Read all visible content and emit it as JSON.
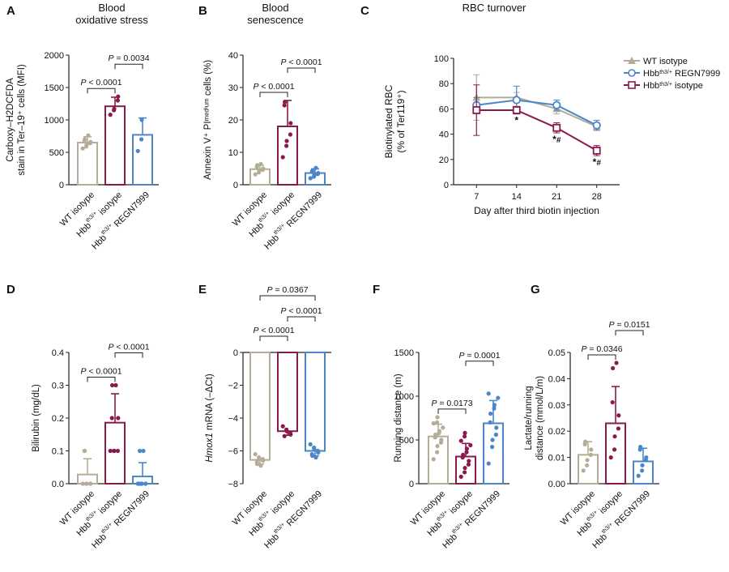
{
  "colors": {
    "wt": "#b5ad98",
    "th3": "#8a1a4e",
    "regn": "#4a86c8",
    "axis": "#222222"
  },
  "groups": [
    "WT isotype",
    "Hbb<sup>th3/+</sup> isotype",
    "Hbb<sup>th3/+</sup> REGN7999"
  ],
  "chart_data": [
    {
      "panel": "A",
      "type": "bar",
      "title": "Blood\noxidative stress",
      "ylabel": "Carboxy–H2DCFDA\nstain in Ter–19⁺ cells (MFI)",
      "ylim": [
        0,
        2000
      ],
      "yticks": [
        "0",
        "500",
        "1000",
        "1500",
        "2000"
      ],
      "categories": [
        "WT isotype",
        "Hbb<sup>th3/+</sup> isotype",
        "Hbb<sup>th3/+</sup> REGN7999"
      ],
      "values": [
        650,
        1210,
        770
      ],
      "sd": [
        90,
        140,
        260
      ],
      "points": [
        [
          560,
          590,
          620,
          640,
          660,
          680,
          700,
          760
        ],
        [
          1080,
          1150,
          1170,
          1300,
          1360
        ],
        [
          520,
          700,
          1000
        ]
      ],
      "comparisons": [
        {
          "a": 0,
          "b": 1,
          "label": "P < 0.0001"
        },
        {
          "a": 1,
          "b": 2,
          "label": "P = 0.0034"
        }
      ]
    },
    {
      "panel": "B",
      "type": "bar",
      "title": "Blood\nsenescence",
      "ylabel": "Annexin V⁺ PIᵐᵉᵈⁱᵘᵐ cells (%)",
      "ylim": [
        0,
        40
      ],
      "yticks": [
        "0",
        "10",
        "20",
        "30",
        "40"
      ],
      "categories": [
        "WT isotype",
        "Hbb<sup>th3/+</sup> isotype",
        "Hbb<sup>th3/+</sup> REGN7999"
      ],
      "values": [
        4.8,
        18.0,
        3.6
      ],
      "sd": [
        1.2,
        8.0,
        1.3
      ],
      "points": [
        [
          3.2,
          3.8,
          4.3,
          4.6,
          5.0,
          5.5,
          6.0,
          6.4
        ],
        [
          8.5,
          12,
          13.5,
          15.5,
          19,
          24.5,
          25.5
        ],
        [
          2.0,
          2.5,
          3.0,
          3.3,
          3.6,
          4.0,
          4.3,
          5.2
        ]
      ],
      "comparisons": [
        {
          "a": 0,
          "b": 1,
          "label": "P < 0.0001"
        },
        {
          "a": 1,
          "b": 2,
          "label": "P < 0.0001"
        }
      ]
    },
    {
      "panel": "C",
      "type": "line",
      "title": "RBC turnover",
      "ylabel": "Biotinylated RBC\n(% of Ter119⁺)",
      "xlabel": "Day after third biotin injection",
      "x": [
        7,
        14,
        21,
        28
      ],
      "ylim": [
        0,
        100
      ],
      "yticks": [
        "0",
        "20",
        "40",
        "60",
        "80",
        "100"
      ],
      "series": [
        {
          "name": "WT isotype",
          "values": [
            69,
            69,
            60,
            46
          ],
          "sd": [
            18,
            4,
            4,
            3
          ],
          "marker": "triangle"
        },
        {
          "name": "Hbb<sup>th3/+</sup> REGN7999",
          "values": [
            63,
            67,
            63,
            47
          ],
          "sd": [
            6,
            11,
            4,
            4
          ],
          "marker": "circle"
        },
        {
          "name": "Hbb<sup>th3/+</sup> isotype",
          "values": [
            59,
            59,
            45,
            27
          ],
          "sd": [
            20,
            3,
            4,
            4
          ],
          "marker": "square"
        }
      ],
      "annotations": [
        {
          "x": 14,
          "label": "*"
        },
        {
          "x": 21,
          "label": "*#"
        },
        {
          "x": 28,
          "label": "*#"
        }
      ],
      "legend": "top-right"
    },
    {
      "panel": "D",
      "type": "bar",
      "ylabel": "Bilirubin (mg/dL)",
      "ylim": [
        0,
        0.4
      ],
      "yticks": [
        "0.0",
        "0.1",
        "0.2",
        "0.3",
        "0.4"
      ],
      "categories": [
        "WT isotype",
        "Hbb<sup>th3/+</sup> isotype",
        "Hbb<sup>th3/+</sup> REGN7999"
      ],
      "values": [
        0.028,
        0.186,
        0.022
      ],
      "sd": [
        0.048,
        0.088,
        0.042
      ],
      "points": [
        [
          0,
          0,
          0,
          0,
          0,
          0.1,
          0.1
        ],
        [
          0.1,
          0.1,
          0.1,
          0.1,
          0.2,
          0.2,
          0.3,
          0.3
        ],
        [
          0,
          0,
          0,
          0,
          0,
          0,
          0.1,
          0.1
        ]
      ],
      "comparisons": [
        {
          "a": 0,
          "b": 1,
          "label": "P < 0.0001"
        },
        {
          "a": 1,
          "b": 2,
          "label": "P < 0.0001"
        }
      ]
    },
    {
      "panel": "E",
      "type": "bar",
      "ylabel": "Hmox1 mRNA (–ΔCt)",
      "ylim": [
        -8,
        0
      ],
      "yticks": [
        "0",
        "−2",
        "−4",
        "−6",
        "−8"
      ],
      "categories": [
        "WT isotype",
        "Hbb<sup>th3/+</sup> isotype",
        "Hbb<sup>th3/+</sup> REGN7999"
      ],
      "values": [
        -6.55,
        -4.8,
        -6.0
      ],
      "sd": [
        0.25,
        0.25,
        0.3
      ],
      "points": [
        [
          -6.2,
          -6.4,
          -6.5,
          -6.5,
          -6.6,
          -6.7,
          -6.8,
          -6.9
        ],
        [
          -4.5,
          -4.7,
          -4.8,
          -4.9,
          -5.0,
          -5.1
        ],
        [
          -5.6,
          -5.8,
          -5.9,
          -6.0,
          -6.1,
          -6.2,
          -6.3,
          -6.4
        ]
      ],
      "comparisons": [
        {
          "a": 0,
          "b": 1,
          "label": "P < 0.0001"
        },
        {
          "a": 1,
          "b": 2,
          "label": "P < 0.0001"
        },
        {
          "a": 0,
          "b": 2,
          "label": "P = 0.0367"
        }
      ]
    },
    {
      "panel": "F",
      "type": "bar",
      "ylabel": "Running distance (m)",
      "ylim": [
        0,
        1500
      ],
      "yticks": [
        "0",
        "500",
        "1000",
        "1500"
      ],
      "categories": [
        "WT isotype",
        "Hbb<sup>th3/+</sup> isotype",
        "Hbb<sup>th3/+</sup> REGN7999"
      ],
      "values": [
        540,
        310,
        690
      ],
      "sd": [
        140,
        150,
        260
      ],
      "points": [
        [
          280,
          360,
          430,
          470,
          500,
          530,
          560,
          580,
          600,
          640,
          690,
          700,
          760
        ],
        [
          80,
          130,
          180,
          220,
          260,
          300,
          330,
          360,
          400,
          440,
          490,
          540,
          580
        ],
        [
          230,
          420,
          500,
          560,
          640,
          700,
          800,
          860,
          900,
          980,
          1030
        ]
      ],
      "comparisons": [
        {
          "a": 0,
          "b": 1,
          "label": "P = 0.0173"
        },
        {
          "a": 1,
          "b": 2,
          "label": "P = 0.0001"
        }
      ]
    },
    {
      "panel": "G",
      "type": "bar",
      "ylabel": "Lactate/running\ndistance (mmol/L/m)",
      "ylim": [
        0,
        0.05
      ],
      "yticks": [
        "0.00",
        "0.01",
        "0.02",
        "0.03",
        "0.04",
        "0.05"
      ],
      "categories": [
        "WT isotype",
        "Hbb<sup>th3/+</sup> isotype",
        "Hbb<sup>th3/+</sup> REGN7999"
      ],
      "values": [
        0.011,
        0.023,
        0.0085
      ],
      "sd": [
        0.005,
        0.014,
        0.005
      ],
      "points": [
        [
          0.005,
          0.007,
          0.009,
          0.011,
          0.013,
          0.015,
          0.016
        ],
        [
          0.01,
          0.013,
          0.018,
          0.021,
          0.026,
          0.031,
          0.044,
          0.046
        ],
        [
          0.003,
          0.005,
          0.007,
          0.009,
          0.01,
          0.013,
          0.014
        ]
      ],
      "comparisons": [
        {
          "a": 0,
          "b": 1,
          "label": "P = 0.0346"
        },
        {
          "a": 1,
          "b": 2,
          "label": "P = 0.0151"
        }
      ]
    }
  ]
}
